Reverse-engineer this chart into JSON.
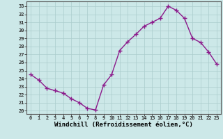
{
  "x": [
    0,
    1,
    2,
    3,
    4,
    5,
    6,
    7,
    8,
    9,
    10,
    11,
    12,
    13,
    14,
    15,
    16,
    17,
    18,
    19,
    20,
    21,
    22,
    23
  ],
  "y": [
    24.5,
    23.8,
    22.8,
    22.5,
    22.2,
    21.5,
    21.0,
    20.3,
    20.1,
    23.2,
    24.5,
    27.5,
    28.6,
    29.5,
    30.5,
    31.0,
    31.5,
    33.0,
    32.5,
    31.5,
    29.0,
    28.5,
    27.3,
    25.8
  ],
  "line_color": "#8B1A8B",
  "marker": "+",
  "markersize": 4,
  "markeredgewidth": 1.0,
  "linewidth": 1.0,
  "background_color": "#cce8e8",
  "grid_color": "#aacccc",
  "xlabel": "Windchill (Refroidissement éolien,°C)",
  "xlabel_fontsize": 6.5,
  "xtick_labels": [
    "0",
    "1",
    "2",
    "3",
    "4",
    "5",
    "6",
    "7",
    "8",
    "9",
    "10",
    "11",
    "12",
    "13",
    "14",
    "15",
    "16",
    "17",
    "18",
    "19",
    "20",
    "21",
    "22",
    "23"
  ],
  "ytick_min": 20,
  "ytick_max": 33,
  "ytick_step": 1,
  "ylim": [
    19.6,
    33.6
  ],
  "xlim": [
    -0.5,
    23.5
  ]
}
